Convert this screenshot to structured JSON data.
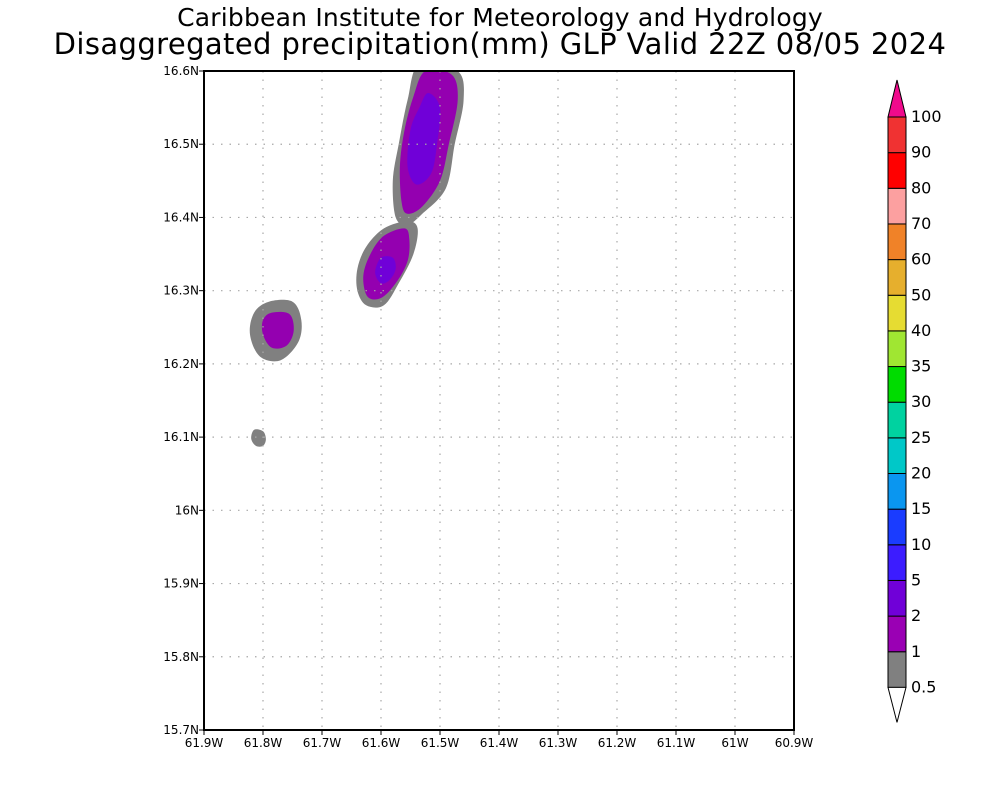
{
  "title": {
    "line1": "Caribbean Institute for Meteorology and Hydrology",
    "line2": "Disaggregated precipitation(mm) GLP Valid 22Z 08/05 2024"
  },
  "map": {
    "lon_range": [
      -61.9,
      -60.9
    ],
    "lat_range": [
      15.7,
      16.6
    ],
    "grid": true,
    "x_ticks": [
      {
        "value": -61.9,
        "label": "61.9W"
      },
      {
        "value": -61.8,
        "label": "61.8W"
      },
      {
        "value": -61.7,
        "label": "61.7W"
      },
      {
        "value": -61.6,
        "label": "61.6W"
      },
      {
        "value": -61.5,
        "label": "61.5W"
      },
      {
        "value": -61.4,
        "label": "61.4W"
      },
      {
        "value": -61.3,
        "label": "61.3W"
      },
      {
        "value": -61.2,
        "label": "61.2W"
      },
      {
        "value": -61.1,
        "label": "61.1W"
      },
      {
        "value": -61.0,
        "label": "61W"
      },
      {
        "value": -60.9,
        "label": "60.9W"
      }
    ],
    "y_ticks": [
      {
        "value": 16.6,
        "label": "16.6N"
      },
      {
        "value": 16.5,
        "label": "16.5N"
      },
      {
        "value": 16.4,
        "label": "16.4N"
      },
      {
        "value": 16.3,
        "label": "16.3N"
      },
      {
        "value": 16.2,
        "label": "16.2N"
      },
      {
        "value": 16.1,
        "label": "16.1N"
      },
      {
        "value": 16.0,
        "label": "16N"
      },
      {
        "value": 15.9,
        "label": "15.9N"
      },
      {
        "value": 15.8,
        "label": "15.8N"
      },
      {
        "value": 15.7,
        "label": "15.7N"
      }
    ],
    "precip_cells": [
      {
        "level": 0.5,
        "color": "#808080",
        "points": [
          [
            -61.535,
            16.61
          ],
          [
            -61.47,
            16.6
          ],
          [
            -61.46,
            16.56
          ],
          [
            -61.475,
            16.5
          ],
          [
            -61.49,
            16.44
          ],
          [
            -61.53,
            16.405
          ],
          [
            -61.555,
            16.39
          ],
          [
            -61.575,
            16.4
          ],
          [
            -61.58,
            16.45
          ],
          [
            -61.57,
            16.5
          ],
          [
            -61.555,
            16.56
          ]
        ]
      },
      {
        "level": 1,
        "color": "#9400b0",
        "points": [
          [
            -61.525,
            16.6
          ],
          [
            -61.48,
            16.595
          ],
          [
            -61.47,
            16.56
          ],
          [
            -61.485,
            16.5
          ],
          [
            -61.5,
            16.45
          ],
          [
            -61.53,
            16.415
          ],
          [
            -61.555,
            16.405
          ],
          [
            -61.565,
            16.42
          ],
          [
            -61.568,
            16.47
          ],
          [
            -61.56,
            16.52
          ],
          [
            -61.545,
            16.565
          ]
        ]
      },
      {
        "level": 2,
        "color": "#7000d8",
        "points": [
          [
            -61.52,
            16.57
          ],
          [
            -61.5,
            16.55
          ],
          [
            -61.505,
            16.5
          ],
          [
            -61.515,
            16.46
          ],
          [
            -61.54,
            16.445
          ],
          [
            -61.555,
            16.47
          ],
          [
            -61.55,
            16.52
          ],
          [
            -61.535,
            16.55
          ]
        ]
      },
      {
        "level": 0.5,
        "color": "#808080",
        "points": [
          [
            -61.555,
            16.395
          ],
          [
            -61.538,
            16.385
          ],
          [
            -61.545,
            16.35
          ],
          [
            -61.57,
            16.31
          ],
          [
            -61.595,
            16.28
          ],
          [
            -61.625,
            16.28
          ],
          [
            -61.64,
            16.3
          ],
          [
            -61.64,
            16.33
          ],
          [
            -61.625,
            16.36
          ],
          [
            -61.595,
            16.385
          ]
        ]
      },
      {
        "level": 1,
        "color": "#9400b0",
        "points": [
          [
            -61.56,
            16.385
          ],
          [
            -61.552,
            16.37
          ],
          [
            -61.555,
            16.34
          ],
          [
            -61.575,
            16.31
          ],
          [
            -61.6,
            16.29
          ],
          [
            -61.623,
            16.292
          ],
          [
            -61.63,
            16.32
          ],
          [
            -61.618,
            16.35
          ],
          [
            -61.595,
            16.375
          ]
        ]
      },
      {
        "level": 2,
        "color": "#7000d8",
        "points": [
          [
            -61.58,
            16.345
          ],
          [
            -61.575,
            16.33
          ],
          [
            -61.585,
            16.315
          ],
          [
            -61.6,
            16.31
          ],
          [
            -61.61,
            16.325
          ],
          [
            -61.6,
            16.345
          ]
        ]
      },
      {
        "level": 0.5,
        "color": "#808080",
        "points": [
          [
            -61.79,
            16.285
          ],
          [
            -61.75,
            16.285
          ],
          [
            -61.735,
            16.26
          ],
          [
            -61.74,
            16.23
          ],
          [
            -61.77,
            16.205
          ],
          [
            -61.805,
            16.21
          ],
          [
            -61.822,
            16.24
          ],
          [
            -61.815,
            16.27
          ]
        ]
      },
      {
        "level": 1,
        "color": "#9400b0",
        "points": [
          [
            -61.785,
            16.27
          ],
          [
            -61.755,
            16.268
          ],
          [
            -61.748,
            16.245
          ],
          [
            -61.76,
            16.225
          ],
          [
            -61.785,
            16.222
          ],
          [
            -61.8,
            16.24
          ],
          [
            -61.8,
            16.26
          ]
        ]
      },
      {
        "level": 0.5,
        "color": "#808080",
        "points": [
          [
            -61.815,
            16.11
          ],
          [
            -61.8,
            16.108
          ],
          [
            -61.795,
            16.097
          ],
          [
            -61.8,
            16.088
          ],
          [
            -61.812,
            16.088
          ],
          [
            -61.82,
            16.098
          ]
        ]
      }
    ]
  },
  "colorbar": {
    "levels": [
      {
        "label": "0.5",
        "color": "#808080"
      },
      {
        "label": "1",
        "color": "#9a00b4"
      },
      {
        "label": "2",
        "color": "#7000d8"
      },
      {
        "label": "5",
        "color": "#3c1cff"
      },
      {
        "label": "10",
        "color": "#1a3cff"
      },
      {
        "label": "15",
        "color": "#0a96f0"
      },
      {
        "label": "20",
        "color": "#00c8c8"
      },
      {
        "label": "25",
        "color": "#00d2a0"
      },
      {
        "label": "30",
        "color": "#00dc00"
      },
      {
        "label": "35",
        "color": "#a0e632"
      },
      {
        "label": "40",
        "color": "#e6dc32"
      },
      {
        "label": "50",
        "color": "#e6af2d"
      },
      {
        "label": "60",
        "color": "#f08228"
      },
      {
        "label": "70",
        "color": "#fca0a0"
      },
      {
        "label": "80",
        "color": "#ff0000"
      },
      {
        "label": "90",
        "color": "#f03232"
      },
      {
        "label": "100",
        "color": "#f00a8c"
      }
    ],
    "under_color": "#ffffff",
    "over_color": "#f00a8c"
  }
}
